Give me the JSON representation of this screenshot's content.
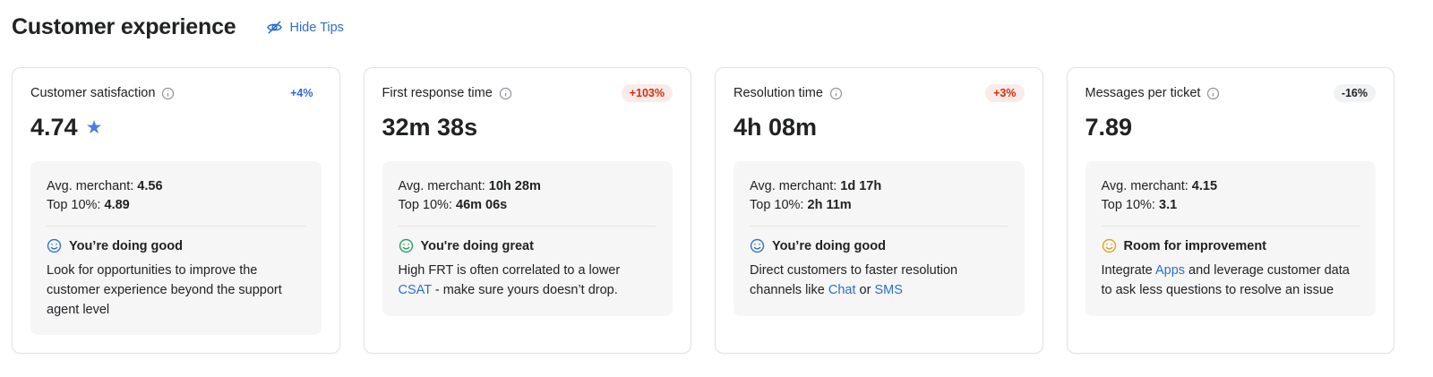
{
  "header": {
    "title": "Customer experience",
    "hide_tips_label": "Hide Tips",
    "hide_tips_icon": "eye-off"
  },
  "icons": {
    "card_title_suffix": "info-circle",
    "status_prefix": "smiley-face",
    "satisfaction_value_suffix": "star-filled"
  },
  "colors": {
    "link_blue": "#2c6ecb",
    "info_blue": "#2c6ecb",
    "accent_star": "#4b7de8",
    "critical_text": "#d72c0d",
    "critical_bg": "#faebe9",
    "neutral_badge_bg": "#f1f2f4",
    "success_green": "#1f9d5f",
    "warning_yellow": "#d9a31a",
    "panel_bg": "#f6f6f7",
    "card_border": "#e1e3e5",
    "text_primary": "#202223"
  },
  "cards": [
    {
      "title": "Customer satisfaction",
      "change": "+4%",
      "change_tone": "info",
      "value": "4.74",
      "star": "★",
      "avg_label": "Avg. merchant:",
      "avg_value": "4.56",
      "top_label": "Top 10%:",
      "top_value": "4.89",
      "status_tone": "blue",
      "status": "You’re doing good",
      "description": [
        {
          "text": "Look for opportunities to improve the customer experience beyond the support agent level",
          "link": false
        }
      ]
    },
    {
      "title": "First response time",
      "change": "+103%",
      "change_tone": "critical",
      "value": "32m 38s",
      "avg_label": "Avg. merchant:",
      "avg_value": "10h 28m",
      "top_label": "Top 10%:",
      "top_value": "46m 06s",
      "status_tone": "green",
      "status": "You're doing great",
      "description": [
        {
          "text": "High FRT is often correlated to a lower ",
          "link": false
        },
        {
          "text": "CSAT",
          "link": true
        },
        {
          "text": " - make sure yours doesn’t drop.",
          "link": false
        }
      ]
    },
    {
      "title": "Resolution time",
      "change": "+3%",
      "change_tone": "critical",
      "value": "4h 08m",
      "avg_label": "Avg. merchant:",
      "avg_value": "1d 17h",
      "top_label": "Top 10%:",
      "top_value": "2h 11m",
      "status_tone": "blue",
      "status": "You’re doing good",
      "description": [
        {
          "text": "Direct customers to faster resolution channels like ",
          "link": false
        },
        {
          "text": "Chat",
          "link": true
        },
        {
          "text": " or ",
          "link": false
        },
        {
          "text": "SMS",
          "link": true
        }
      ]
    },
    {
      "title": "Messages per ticket",
      "change": "-16%",
      "change_tone": "neutral",
      "value": "7.89",
      "avg_label": "Avg. merchant:",
      "avg_value": "4.15",
      "top_label": "Top 10%:",
      "top_value": "3.1",
      "status_tone": "yellow",
      "status": "Room for improvement",
      "description": [
        {
          "text": "Integrate ",
          "link": false
        },
        {
          "text": "Apps",
          "link": true
        },
        {
          "text": " and leverage customer data to ask less questions to resolve an issue",
          "link": false
        }
      ]
    }
  ]
}
